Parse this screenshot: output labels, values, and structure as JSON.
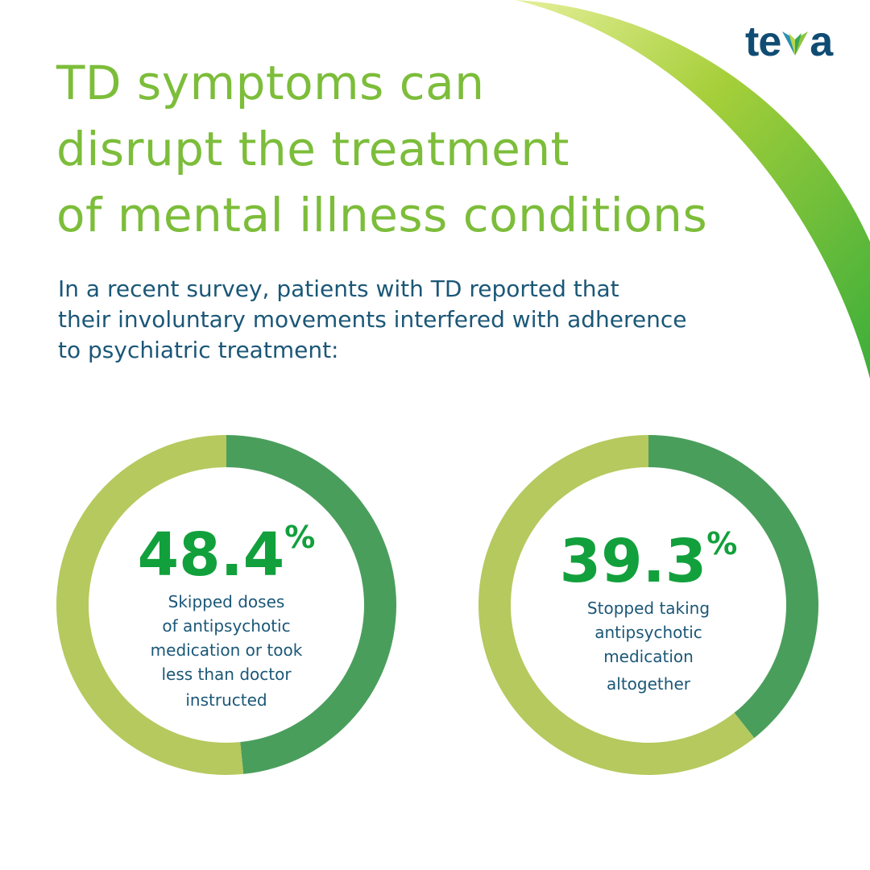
{
  "brand": {
    "logo_text": "teva",
    "colors": {
      "title": "#7cbd3a",
      "body": "#1b5777",
      "value": "#12a03c",
      "ring_highlight": "#4a9e5c",
      "ring_rest": "#b5c95e"
    }
  },
  "title": {
    "lines": [
      "TD symptoms can",
      "disrupt the treatment",
      "of mental illness conditions"
    ]
  },
  "subtitle": {
    "lines": [
      "In a recent survey, patients with TD reported that",
      "their involuntary movements interfered with adherence",
      "to psychiatric treatment:"
    ]
  },
  "chart_data": [
    {
      "type": "pie",
      "donut": true,
      "values": [
        48.4,
        51.6
      ],
      "value_label": "48.4",
      "unit": "%",
      "description_lines": [
        "Skipped doses",
        "of antipsychotic",
        "medication or took",
        "less than doctor",
        "instructed"
      ]
    },
    {
      "type": "pie",
      "donut": true,
      "values": [
        39.3,
        60.7
      ],
      "value_label": "39.3",
      "unit": "%",
      "description_lines": [
        "Stopped taking",
        "antipsychotic",
        "medication",
        "altogether"
      ]
    }
  ]
}
